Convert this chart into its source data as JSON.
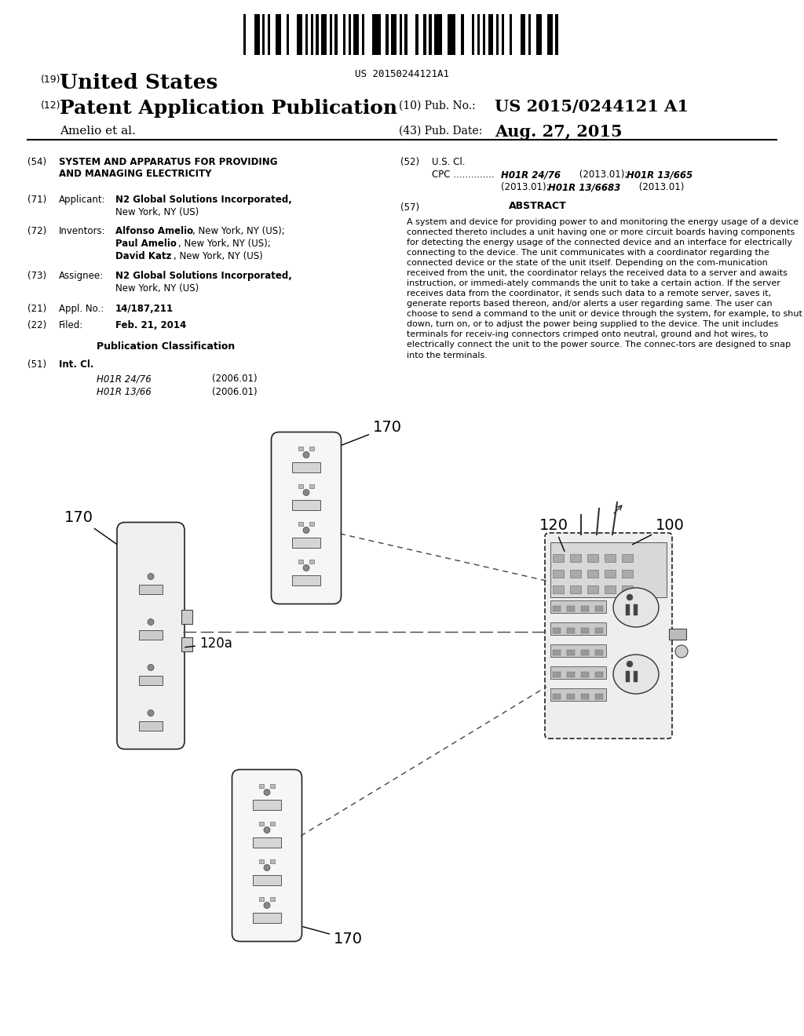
{
  "bg_color": "#ffffff",
  "barcode_text": "US 20150244121A1",
  "title_19": "(19)",
  "title_country": "United States",
  "title_12": "(12)",
  "title_type": "Patent Application Publication",
  "title_10": "(10) Pub. No.:",
  "pub_no": "US 2015/0244121 A1",
  "author": "Amelio et al.",
  "title_43": "(43) Pub. Date:",
  "pub_date": "Aug. 27, 2015",
  "field54_label": "(54)",
  "field54_text": "SYSTEM AND APPARATUS FOR PROVIDING\nAND MANAGING ELECTRICITY",
  "field52_label": "(52)",
  "field52_title": "U.S. Cl.",
  "field57_label": "(57)",
  "field57_title": "ABSTRACT",
  "abstract_text": "A system and device for providing power to and monitoring the energy usage of a device connected thereto includes a unit having one or more circuit boards having components for detecting the energy usage of the connected device and an interface for electrically connecting to the device. The unit communicates with a coordinator regarding the connected device or the state of the unit itself. Depending on the com-munication received from the unit, the coordinator relays the received data to a server and awaits instruction, or immedi-ately commands the unit to take a certain action. If the server receives data from the coordinator, it sends such data to a remote server, saves it, generate reports based thereon, and/or alerts a user regarding same. The user can choose to send a command to the unit or device through the system, for example, to shut down, turn on, or to adjust the power being supplied to the device. The unit includes terminals for receiv-ing connectors crimped onto neutral, ground and hot wires, to electrically connect the unit to the power source. The connec-tors are designed to snap into the terminals.",
  "field71_label": "(71)",
  "field71_title": "Applicant:",
  "field72_label": "(72)",
  "field72_title": "Inventors:",
  "field73_label": "(73)",
  "field73_title": "Assignee:",
  "field21_label": "(21)",
  "field21_title": "Appl. No.:",
  "field21_text": "14/187,211",
  "field22_label": "(22)",
  "field22_title": "Filed:",
  "field22_text": "Feb. 21, 2014",
  "pub_class_title": "Publication Classification",
  "field51_label": "(51)",
  "field51_title": "Int. Cl.",
  "field51_class1": "H01R 24/76",
  "field51_year1": "(2006.01)",
  "field51_class2": "H01R 13/66",
  "field51_year2": "(2006.01)",
  "diagram_label_100": "100",
  "diagram_label_120": "120",
  "diagram_label_120a": "120a",
  "diagram_label_170a": "170",
  "diagram_label_170b": "170",
  "diagram_label_170c": "170"
}
